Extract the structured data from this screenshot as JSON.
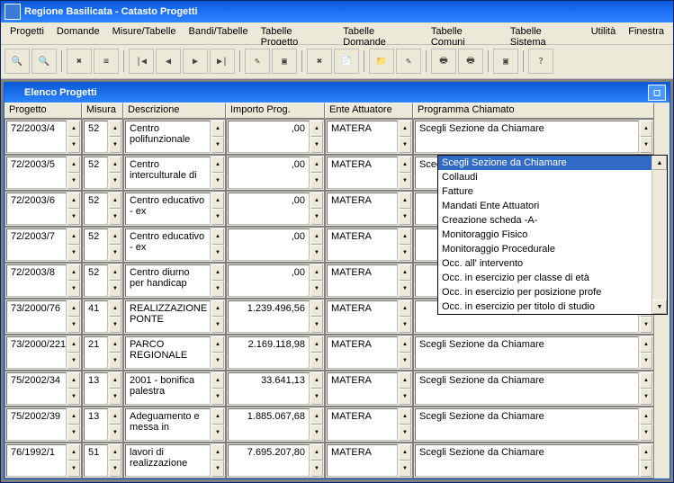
{
  "window_title": "Regione Basilicata - Catasto Progetti",
  "menus": [
    "Progetti",
    "Domande",
    "Misure/Tabelle",
    "Bandi/Tabelle",
    "Tabelle Progetto",
    "Tabelle Domande",
    "Tabelle Comuni",
    "Tabelle Sistema",
    "Utilità",
    "Finestra"
  ],
  "child_title": "Elenco Progetti",
  "columns": [
    {
      "label": "Progetto",
      "cls": "w-prog"
    },
    {
      "label": "Misura",
      "cls": "w-mis"
    },
    {
      "label": "Descrizione",
      "cls": "w-desc"
    },
    {
      "label": "Importo Prog.",
      "cls": "w-imp"
    },
    {
      "label": "Ente Attuatore",
      "cls": "w-ente"
    },
    {
      "label": "Programma Chiamato",
      "cls": "w-chm"
    }
  ],
  "rows": [
    {
      "p": "72/2003/4",
      "m": "52",
      "d": "Centro polifunzionale",
      "i": ",00",
      "e": "MATERA",
      "c": "Scegli Sezione da Chiamare",
      "dd": false
    },
    {
      "p": "72/2003/5",
      "m": "52",
      "d": "Centro interculturale di",
      "i": ",00",
      "e": "MATERA",
      "c": "Scegli Sezione da Chiamare",
      "dd": true
    },
    {
      "p": "72/2003/6",
      "m": "52",
      "d": "Centro educativo - ex",
      "i": ",00",
      "e": "MATERA",
      "c": "",
      "dd": false
    },
    {
      "p": "72/2003/7",
      "m": "52",
      "d": "Centro educativo - ex",
      "i": ",00",
      "e": "MATERA",
      "c": "",
      "dd": false
    },
    {
      "p": "72/2003/8",
      "m": "52",
      "d": "Centro diurno per handicap",
      "i": ",00",
      "e": "MATERA",
      "c": "",
      "dd": false
    },
    {
      "p": "73/2000/76",
      "m": "41",
      "d": "REALIZZAZIONE PONTE",
      "i": "1.239.496,56",
      "e": "MATERA",
      "c": "",
      "dd": false
    },
    {
      "p": "73/2000/221",
      "m": "21",
      "d": "PARCO REGIONALE",
      "i": "2.169.118,98",
      "e": "MATERA",
      "c": "Scegli Sezione da Chiamare",
      "dd": false
    },
    {
      "p": "75/2002/34",
      "m": "13",
      "d": "2001 - bonifica palestra",
      "i": "33.641,13",
      "e": "MATERA",
      "c": "Scegli Sezione da Chiamare",
      "dd": false
    },
    {
      "p": "75/2002/39",
      "m": "13",
      "d": "Adeguamento e messa in",
      "i": "1.885.067,68",
      "e": "MATERA",
      "c": "Scegli Sezione da Chiamare",
      "dd": false
    },
    {
      "p": "76/1992/1",
      "m": "51",
      "d": "lavori di realizzazione",
      "i": "7.695.207,80",
      "e": "MATERA",
      "c": "Scegli Sezione da Chiamare",
      "dd": false
    }
  ],
  "dropdown_options": [
    "Scegli Sezione da Chiamare",
    "Collaudi",
    "Fatture",
    "Mandati Ente Attuatori",
    "Creazione scheda -A-",
    "Monitoraggio Fisico",
    "Monitoraggio Procedurale",
    "Occ. all' intervento",
    "Occ. in esercizio per classe di età",
    "Occ. in esercizio per posizione profe",
    "Occ. in esercizio per titolo di studio"
  ],
  "toolbar_icons": [
    "🔍",
    "🔍",
    "✖",
    "≡",
    "|◀",
    "◀",
    "▶",
    "▶|",
    "✎",
    "▣",
    "✖",
    "📄",
    "📁",
    "✎",
    "🖶",
    "🖶",
    "▣",
    "?"
  ]
}
